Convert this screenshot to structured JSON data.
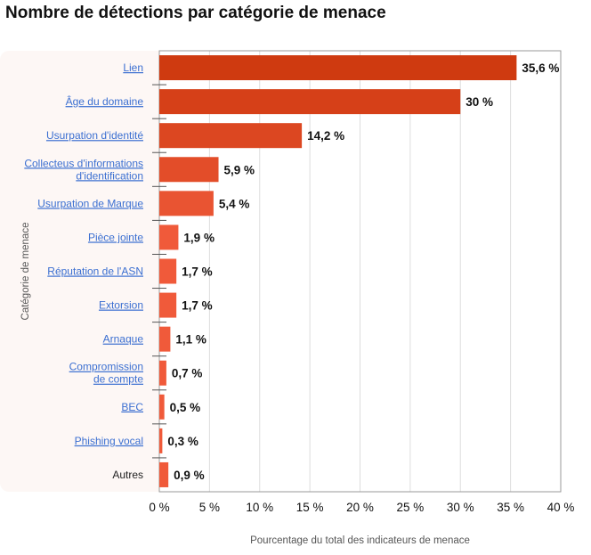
{
  "chart_data": {
    "type": "bar",
    "orientation": "horizontal",
    "title": "Nombre de détections par catégorie de menace",
    "xlabel": "Pourcentage du total des indicateurs de menace",
    "ylabel": "Catégorie de menace",
    "xlim": [
      0,
      40
    ],
    "xticks": [
      0,
      5,
      10,
      15,
      20,
      25,
      30,
      35,
      40
    ],
    "xtick_labels": [
      "0 %",
      "5 %",
      "10 %",
      "15 %",
      "20 %",
      "25 %",
      "30 %",
      "35 %",
      "40 %"
    ],
    "grid": "vertical",
    "categories": [
      {
        "label": [
          "Lien"
        ],
        "link": true
      },
      {
        "label": [
          "Âge du domaine"
        ],
        "link": true
      },
      {
        "label": [
          "Usurpation d'identité"
        ],
        "link": true
      },
      {
        "label": [
          "Collecteus d'informations",
          "d'identification"
        ],
        "link": true
      },
      {
        "label": [
          "Usurpation de Marque"
        ],
        "link": true
      },
      {
        "label": [
          "Pièce jointe"
        ],
        "link": true
      },
      {
        "label": [
          "Réputation de l'ASN"
        ],
        "link": true
      },
      {
        "label": [
          "Extorsion"
        ],
        "link": true
      },
      {
        "label": [
          "Arnaque"
        ],
        "link": true
      },
      {
        "label": [
          "Compromission",
          "de compte"
        ],
        "link": true
      },
      {
        "label": [
          "BEC"
        ],
        "link": true
      },
      {
        "label": [
          "Phishing vocal"
        ],
        "link": true
      },
      {
        "label": [
          "Autres"
        ],
        "link": false
      }
    ],
    "values": [
      35.6,
      30,
      14.2,
      5.9,
      5.4,
      1.9,
      1.7,
      1.7,
      1.1,
      0.7,
      0.5,
      0.3,
      0.9
    ],
    "value_labels": [
      "35,6 %",
      "30 %",
      "14,2 %",
      "5,9 %",
      "5,4 %",
      "1,9 %",
      "1,7 %",
      "1,7 %",
      "1,1 %",
      "0,7 %",
      "0,5 %",
      "0,3 %",
      "0,9 %"
    ],
    "colors": {
      "bar_start": "#cf3a10",
      "bar_end": "#f05a3a",
      "link": "#3b6fd1",
      "grid": "#dddddd"
    }
  }
}
